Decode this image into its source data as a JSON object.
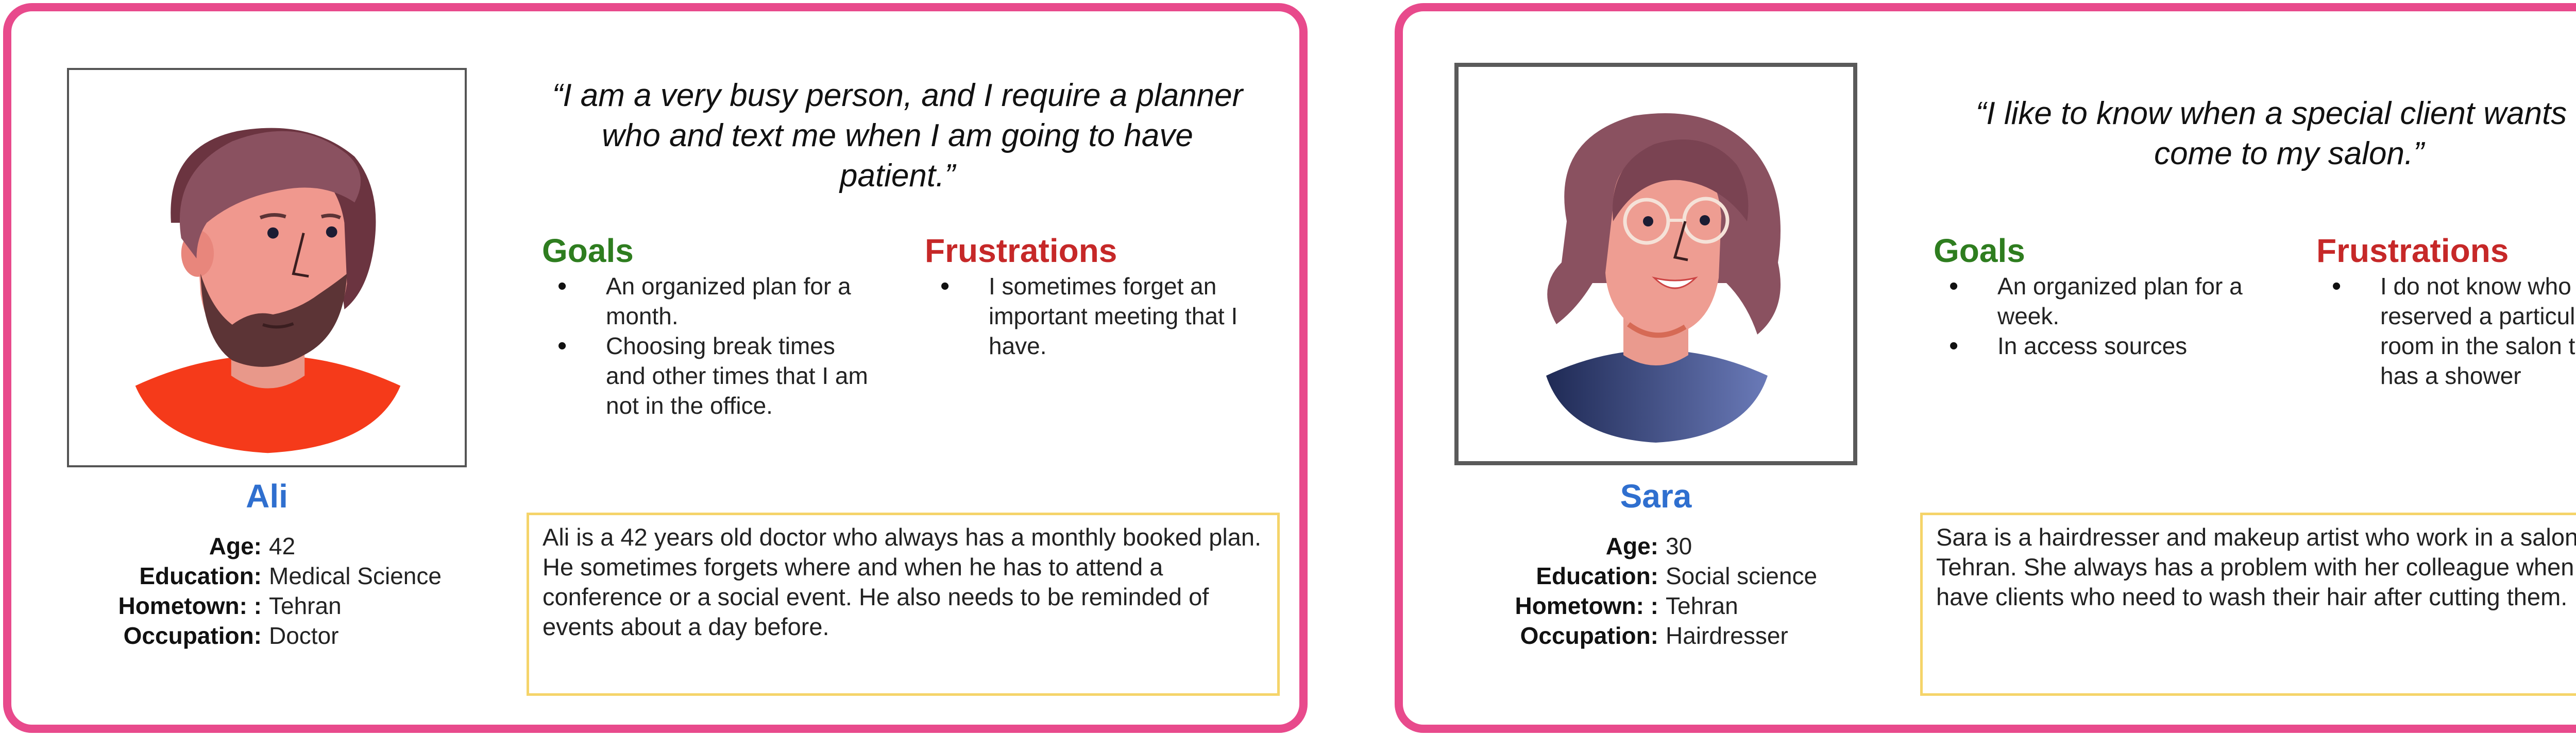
{
  "personas": [
    {
      "name": "Ali",
      "details": [
        {
          "label": "Age:",
          "value": "42"
        },
        {
          "label": "Education:",
          "value": "Medical Science"
        },
        {
          "label": "Hometown: :",
          "value": "Tehran"
        },
        {
          "label": "Occupation:",
          "value": "Doctor"
        }
      ],
      "quote": "“I am a very busy person, and I require a planner who and text me when I am going to have patient.”",
      "goals_heading": "Goals",
      "goals": [
        "An organized plan for a month.",
        "Choosing break times and other times that I am not in the office."
      ],
      "frustrations_heading": "Frustrations",
      "frustrations": [
        "I sometimes forget an important meeting that I have."
      ],
      "bio": "Ali is a 42 years old doctor who always has a monthly booked plan. He sometimes forgets where and when he has to attend a conference or a social event. He also needs to be reminded of events about a day before.",
      "avatar_icon": "male-avatar-icon"
    },
    {
      "name": "Sara",
      "details": [
        {
          "label": "Age:",
          "value": "30"
        },
        {
          "label": "Education:",
          "value": "Social science"
        },
        {
          "label": "Hometown: :",
          "value": "Tehran"
        },
        {
          "label": "Occupation:",
          "value": "Hairdresser"
        }
      ],
      "quote": "“I like to know when a special client wants to come to my salon.”",
      "goals_heading": "Goals",
      "goals": [
        "An organized plan for a week.",
        "In access sources"
      ],
      "frustrations_heading": "Frustrations",
      "frustrations": [
        "I do not know who reserved a particular room in the salon that has a shower"
      ],
      "bio": "Sara is a hairdresser and makeup artist who work in a salon in Tehran. She always has a problem with her colleague when they have clients who need to wash their hair after cutting them.",
      "avatar_icon": "female-avatar-icon"
    }
  ],
  "colors": {
    "card_border": "#e84a8c",
    "name": "#2f6fcf",
    "goals": "#2e7d1f",
    "frustrations": "#c62828",
    "bio_border": "#f5d46a"
  }
}
